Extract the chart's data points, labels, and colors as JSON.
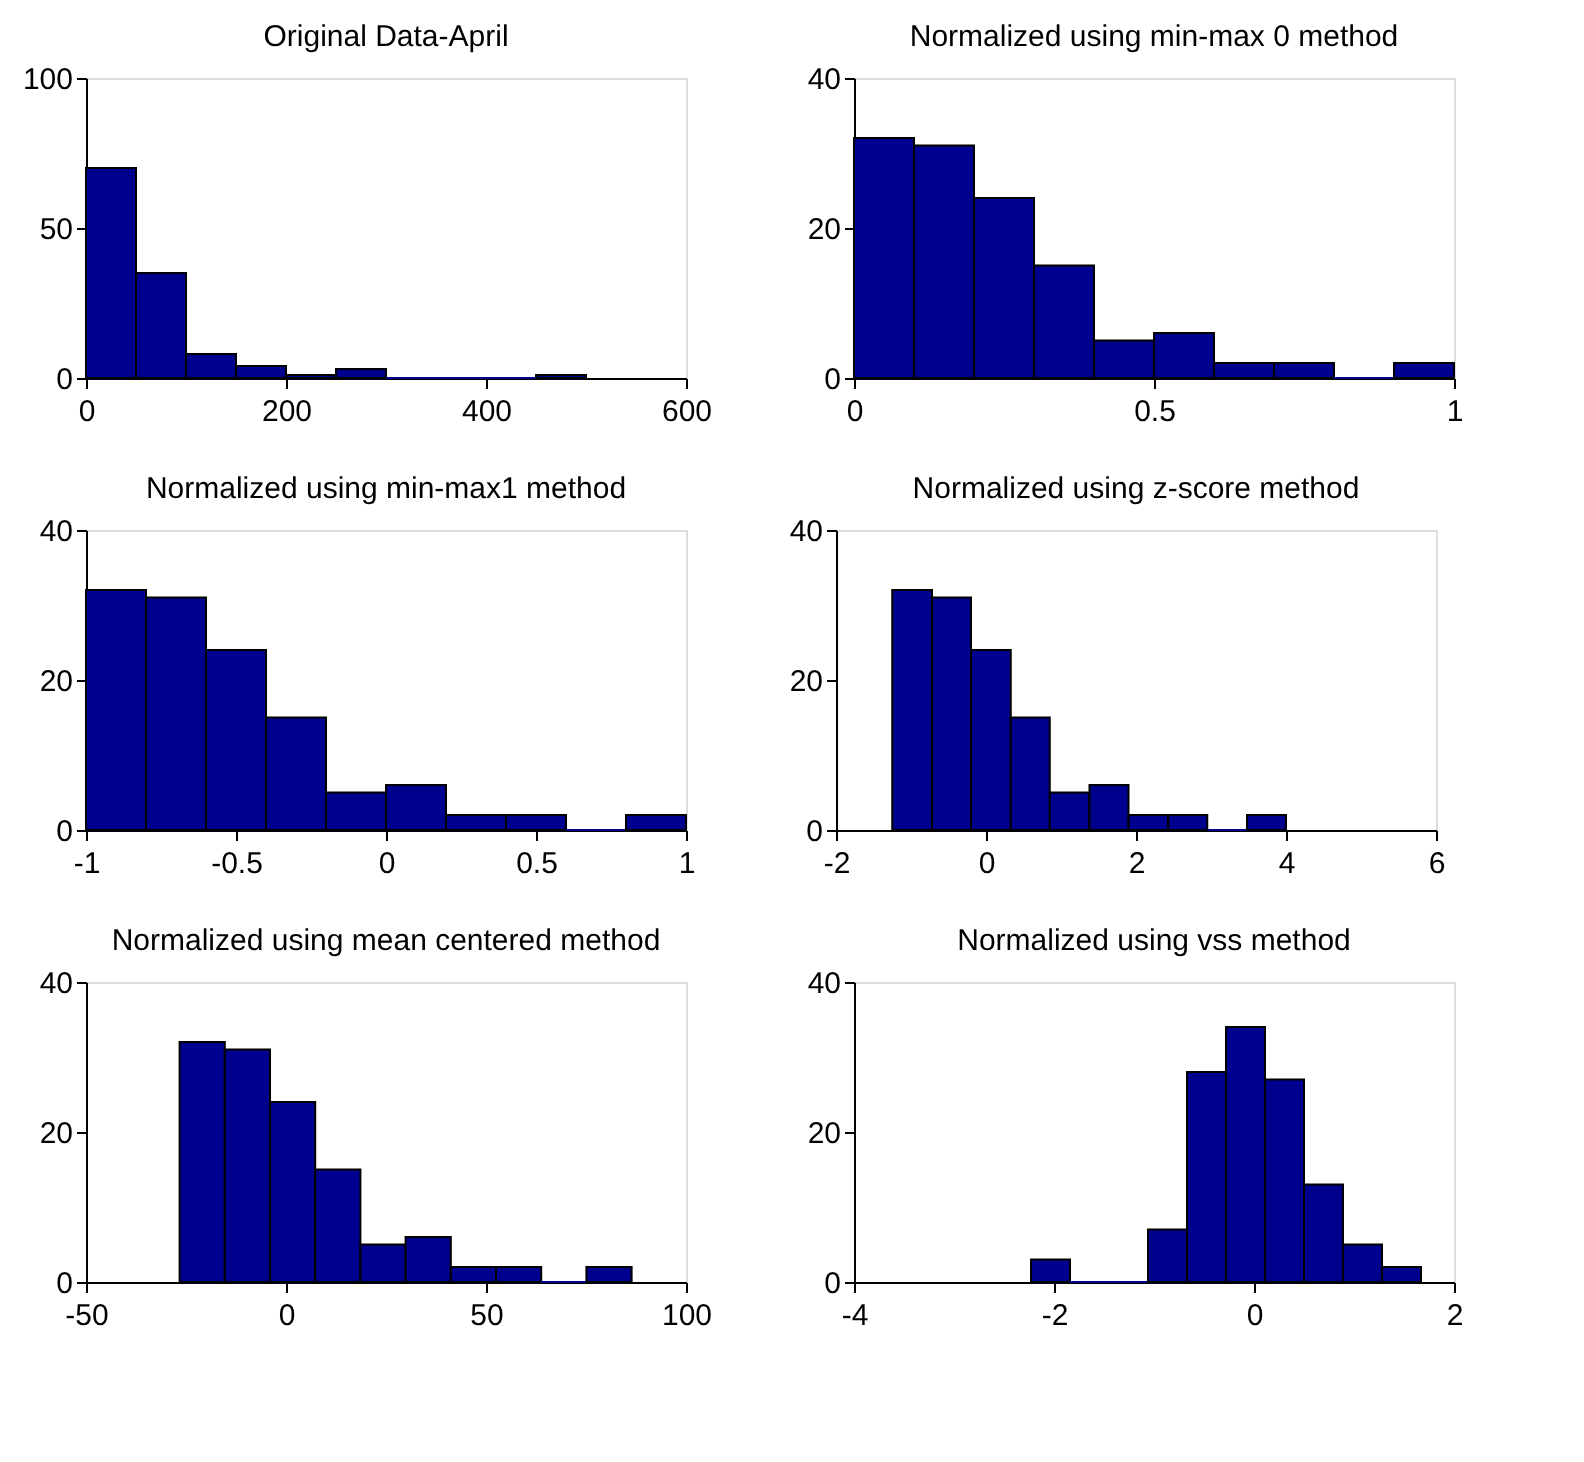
{
  "chart_data": [
    {
      "type": "histogram",
      "title": "Original Data-April",
      "bins": [
        0,
        50,
        100,
        150,
        200,
        250,
        300,
        350,
        400,
        450,
        500
      ],
      "values": [
        70,
        35,
        8,
        4,
        1,
        3,
        0,
        0,
        0,
        1
      ],
      "color": "#00008f",
      "xlim": [
        0,
        600
      ],
      "ylim": [
        0,
        100
      ],
      "xticks": [
        0,
        200,
        400,
        600
      ],
      "yticks": [
        0,
        50,
        100
      ],
      "grid": false
    },
    {
      "type": "histogram",
      "title": "Normalized using min-max 0 method",
      "bins": [
        0,
        0.1,
        0.2,
        0.3,
        0.4,
        0.5,
        0.6,
        0.7,
        0.8,
        0.9,
        1
      ],
      "values": [
        32,
        31,
        24,
        15,
        5,
        6,
        2,
        2,
        0,
        2
      ],
      "color": "#00008f",
      "xlim": [
        0,
        1
      ],
      "ylim": [
        0,
        40
      ],
      "xticks": [
        0,
        0.5,
        1
      ],
      "yticks": [
        0,
        20,
        40
      ],
      "grid": false
    },
    {
      "type": "histogram",
      "title": "Normalized using min-max1 method",
      "bins": [
        -1,
        -0.8,
        -0.6,
        -0.4,
        -0.2,
        0,
        0.2,
        0.4,
        0.6,
        0.8,
        1
      ],
      "values": [
        32,
        31,
        24,
        15,
        5,
        6,
        2,
        2,
        0,
        2
      ],
      "color": "#00008f",
      "xlim": [
        -1,
        1
      ],
      "ylim": [
        0,
        40
      ],
      "xticks": [
        -1,
        -0.5,
        0,
        0.5,
        1
      ],
      "yticks": [
        0,
        20,
        40
      ],
      "grid": false
    },
    {
      "type": "histogram",
      "title": "Normalized using z-score method",
      "bins": [
        -1.25,
        -0.72,
        -0.2,
        0.33,
        0.85,
        1.38,
        1.9,
        2.43,
        2.95,
        3.48,
        4.0
      ],
      "values": [
        32,
        31,
        24,
        15,
        5,
        6,
        2,
        2,
        0,
        2
      ],
      "color": "#00008f",
      "xlim": [
        -2,
        6
      ],
      "ylim": [
        0,
        40
      ],
      "xticks": [
        -2,
        0,
        2,
        4,
        6
      ],
      "yticks": [
        0,
        20,
        40
      ],
      "grid": false
    },
    {
      "type": "histogram",
      "title": "Normalized using mean centered method",
      "bins": [
        -26.6,
        -15.3,
        -4,
        7.3,
        18.6,
        29.9,
        41.2,
        52.5,
        63.8,
        75.1,
        86.4
      ],
      "values": [
        32,
        31,
        24,
        15,
        5,
        6,
        2,
        2,
        0,
        2
      ],
      "color": "#00008f",
      "xlim": [
        -50,
        100
      ],
      "ylim": [
        0,
        40
      ],
      "xticks": [
        -50,
        0,
        50,
        100
      ],
      "yticks": [
        0,
        20,
        40
      ],
      "grid": false
    },
    {
      "type": "histogram",
      "title": "Normalized using vss method",
      "bins": [
        -2.23,
        -1.84,
        -1.45,
        -1.06,
        -0.67,
        -0.28,
        0.11,
        0.5,
        0.89,
        1.28,
        1.67
      ],
      "values": [
        3,
        0,
        0,
        7,
        28,
        34,
        27,
        13,
        5,
        2
      ],
      "color": "#00008f",
      "xlim": [
        -4,
        2
      ],
      "ylim": [
        0,
        40
      ],
      "xticks": [
        -4,
        -2,
        0,
        2
      ],
      "yticks": [
        0,
        20,
        40
      ],
      "grid": false
    }
  ]
}
